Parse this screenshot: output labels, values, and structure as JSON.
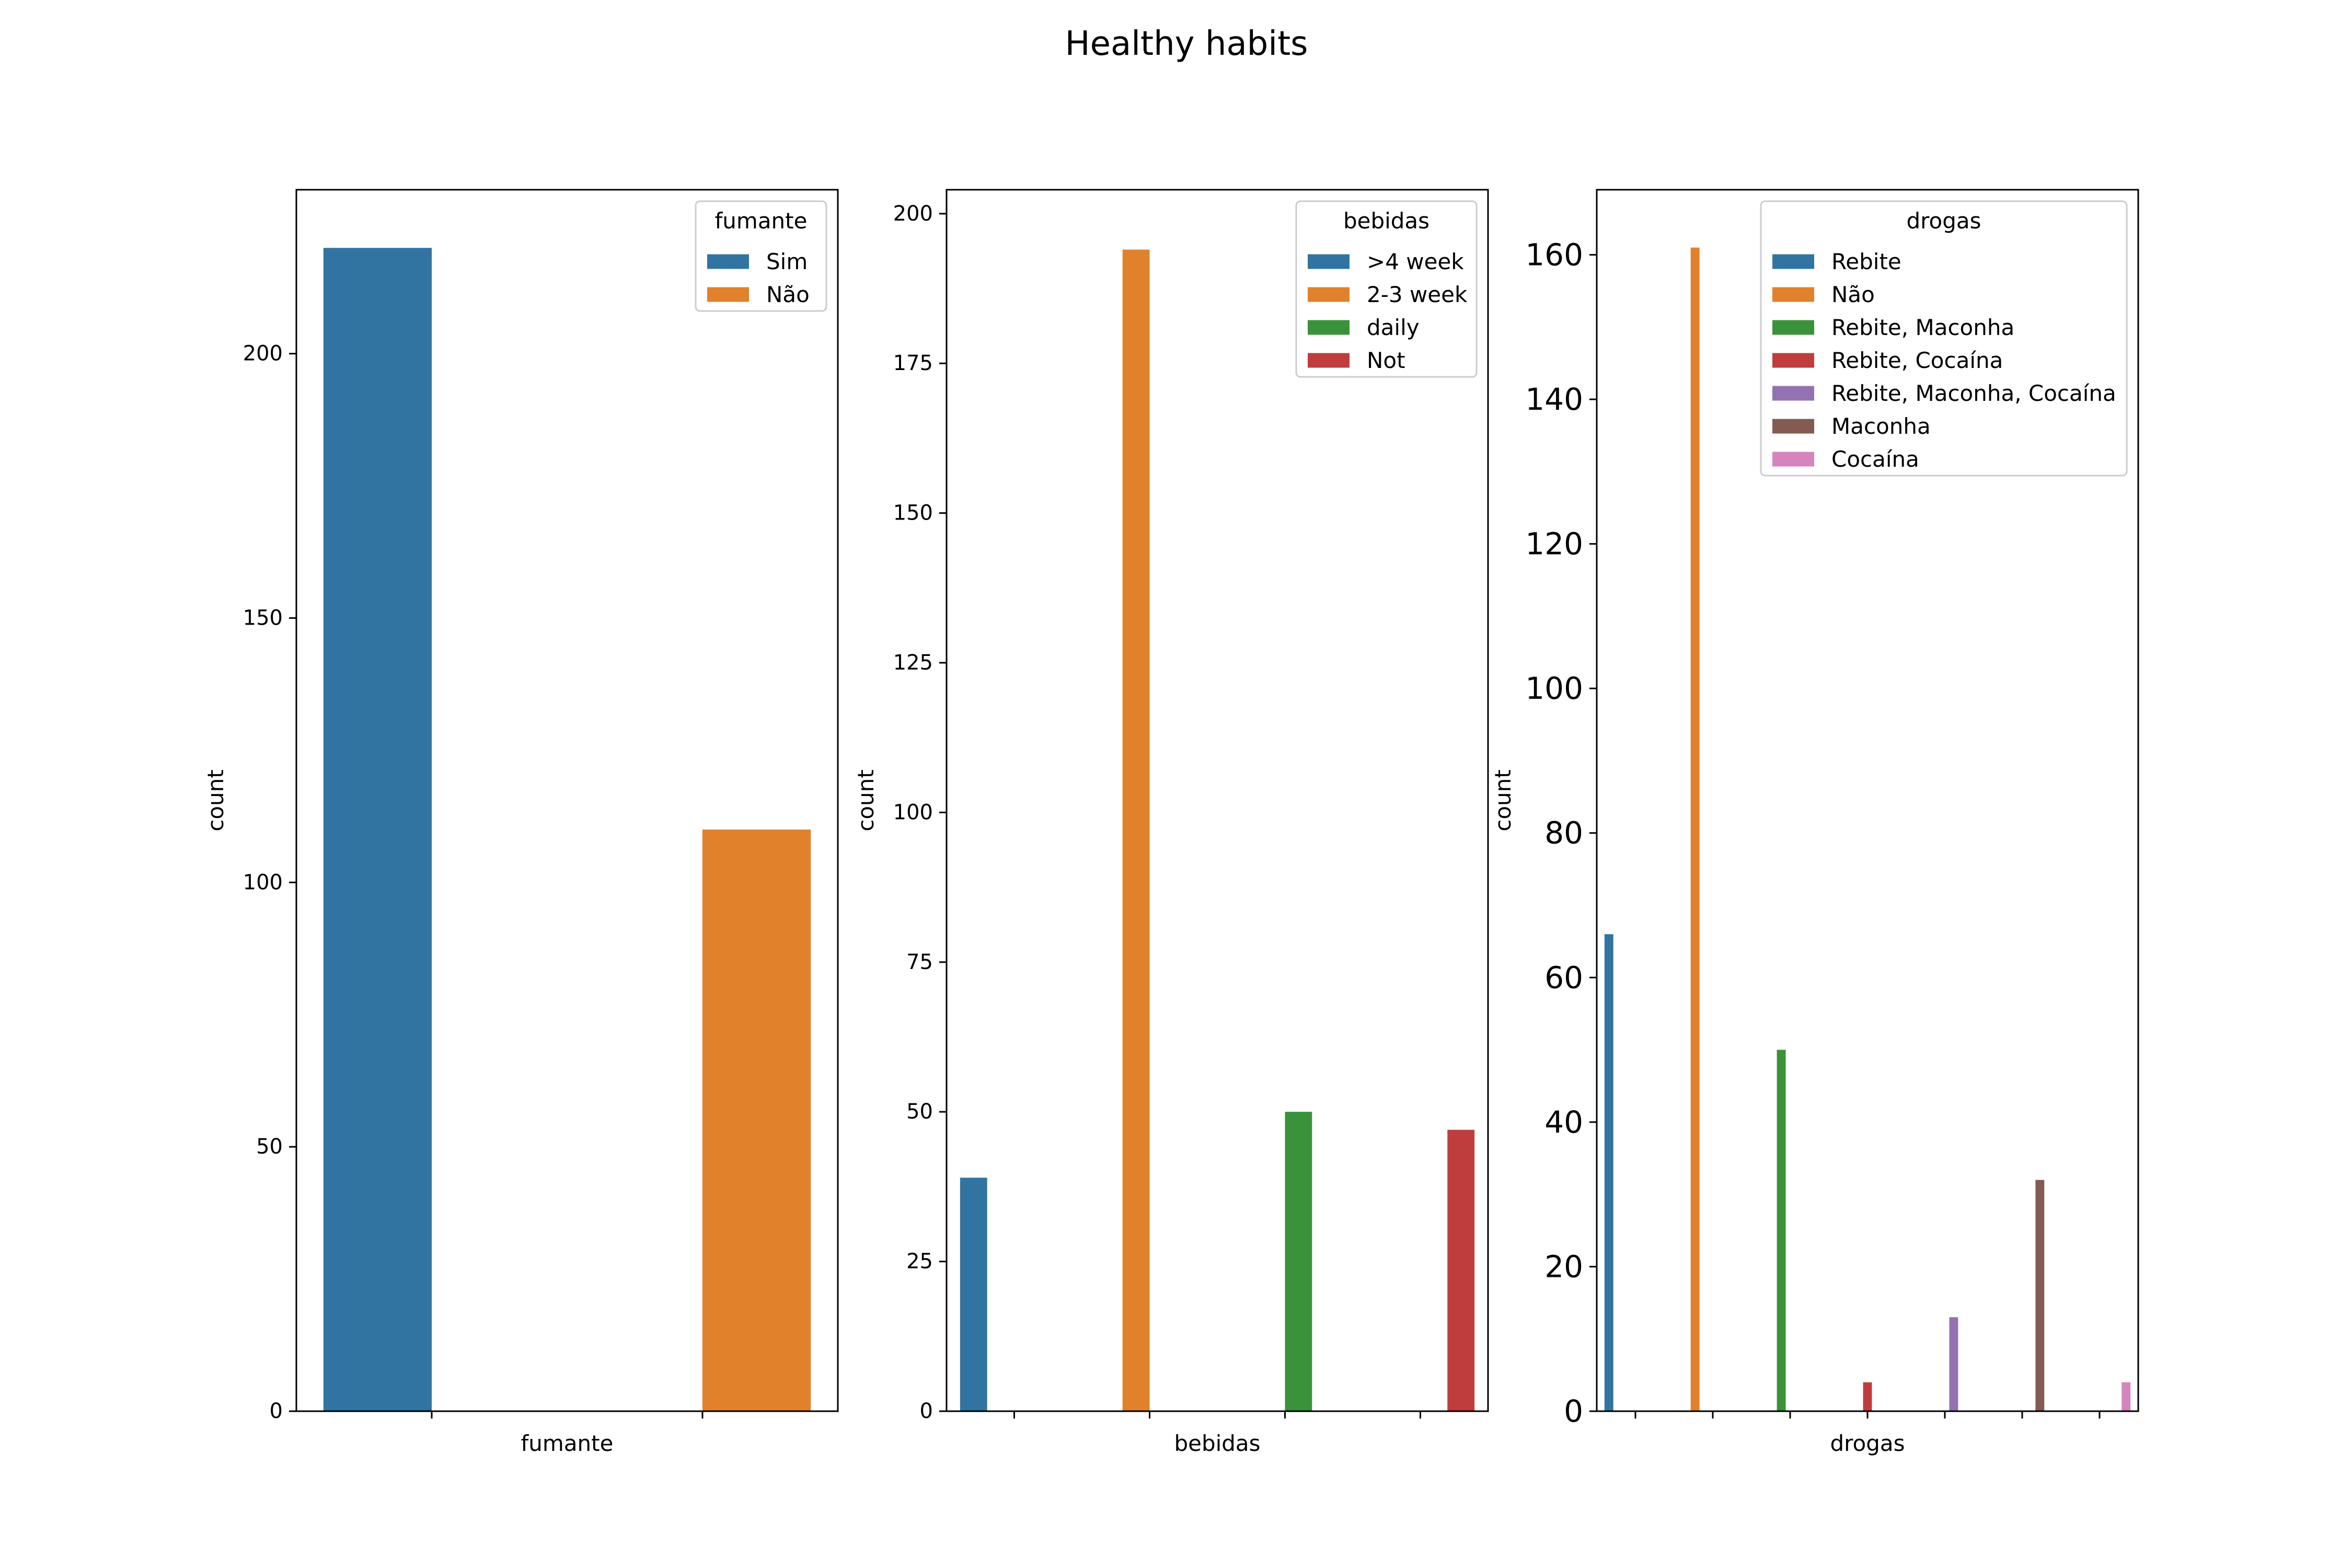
{
  "figure": {
    "title": "Healthy habits"
  },
  "chart_data": [
    {
      "type": "bar",
      "categories": [
        "Sim",
        "Não"
      ],
      "series": [
        {
          "name": "Sim",
          "values": [
            220,
            null
          ]
        },
        {
          "name": "Não",
          "values": [
            null,
            110
          ]
        }
      ],
      "title": "",
      "xlabel": "fumante",
      "ylabel": "count",
      "ylim": [
        0,
        231
      ],
      "yticks": [
        0,
        50,
        100,
        150,
        200
      ],
      "legend": {
        "title": "fumante",
        "entries": [
          "Sim",
          "Não"
        ],
        "placement": "top-right"
      },
      "colors": [
        "#3274a1",
        "#e1812c"
      ],
      "grid": false
    },
    {
      "type": "bar",
      "categories": [
        ">4 week",
        "2-3 week",
        "daily",
        "Not"
      ],
      "series": [
        {
          "name": ">4 week",
          "values": [
            39,
            null,
            null,
            null
          ]
        },
        {
          "name": "2-3 week",
          "values": [
            null,
            194,
            null,
            null
          ]
        },
        {
          "name": "daily",
          "values": [
            null,
            null,
            50,
            null
          ]
        },
        {
          "name": "Not",
          "values": [
            null,
            null,
            null,
            47
          ]
        }
      ],
      "title": "",
      "xlabel": "bebidas",
      "ylabel": "count",
      "ylim": [
        0,
        204
      ],
      "yticks": [
        0,
        25,
        50,
        75,
        100,
        125,
        150,
        175,
        200
      ],
      "legend": {
        "title": "bebidas",
        "entries": [
          ">4 week",
          "2-3 week",
          "daily",
          "Not"
        ],
        "placement": "top-right"
      },
      "colors": [
        "#3274a1",
        "#e1812c",
        "#3a923a",
        "#c03d3e"
      ],
      "grid": false
    },
    {
      "type": "bar",
      "categories": [
        "Rebite",
        "Não",
        "Rebite, Maconha",
        "Rebite, Cocaína",
        "Rebite, Maconha, Cocaína",
        "Maconha",
        "Cocaína"
      ],
      "series": [
        {
          "name": "Rebite",
          "values": [
            66,
            null,
            null,
            null,
            null,
            null,
            null
          ]
        },
        {
          "name": "Não",
          "values": [
            null,
            161,
            null,
            null,
            null,
            null,
            null
          ]
        },
        {
          "name": "Rebite, Maconha",
          "values": [
            null,
            null,
            50,
            null,
            null,
            null,
            null
          ]
        },
        {
          "name": "Rebite, Cocaína",
          "values": [
            null,
            null,
            null,
            4,
            null,
            null,
            null
          ]
        },
        {
          "name": "Rebite, Maconha, Cocaína",
          "values": [
            null,
            null,
            null,
            null,
            13,
            null,
            null
          ]
        },
        {
          "name": "Maconha",
          "values": [
            null,
            null,
            null,
            null,
            null,
            32,
            null
          ]
        },
        {
          "name": "Cocaína",
          "values": [
            null,
            null,
            null,
            null,
            null,
            null,
            4
          ]
        }
      ],
      "title": "",
      "xlabel": "drogas",
      "ylabel": "count",
      "ylim": [
        0,
        169
      ],
      "yticks": [
        0,
        20,
        40,
        60,
        80,
        100,
        120,
        140,
        160
      ],
      "legend": {
        "title": "drogas",
        "entries": [
          "Rebite",
          "Não",
          "Rebite, Maconha",
          "Rebite, Cocaína",
          "Rebite, Maconha, Cocaína",
          "Maconha",
          "Cocaína"
        ],
        "placement": "top-right"
      },
      "colors": [
        "#3274a1",
        "#e1812c",
        "#3a923a",
        "#c03d3e",
        "#9372b2",
        "#845b53",
        "#d684bd"
      ],
      "grid": false
    }
  ]
}
